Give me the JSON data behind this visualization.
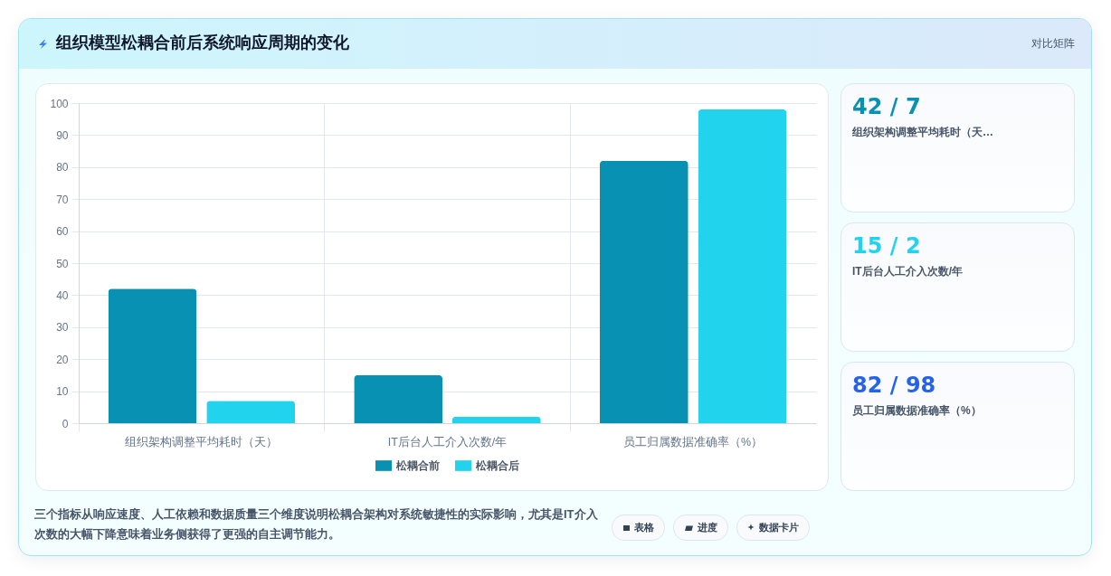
{
  "chart_data": [
    {
      "type": "bar",
      "title": "组织模型松耦合前后系统响应周期的变化",
      "categories": [
        "组织架构调整平均耗时（天）",
        "IT后台人工介入次数/年",
        "员工归属数据准确率（%）"
      ],
      "series": [
        {
          "name": "松耦合前",
          "color": "#0891b2",
          "values": [
            42,
            15,
            82
          ]
        },
        {
          "name": "松耦合后",
          "color": "#22d3ee",
          "values": [
            7,
            2,
            98
          ]
        }
      ],
      "ylim": [
        0,
        100
      ],
      "yticks": [
        0,
        10,
        20,
        30,
        40,
        50,
        60,
        70,
        80,
        90,
        100
      ],
      "grid": true,
      "legend": "bottom",
      "annotations": [
        "对比矩阵",
        "三个指标从响应速度、人工依赖和数据质量三个维度说明松耦合架构对系统敏捷性的实际影响，尤其是IT介入次数的大幅下降意味着业务侧获得了更强的自主调节能力。",
        "表格",
        "进度",
        "数据卡片"
      ]
    },
    {
      "type": "other",
      "title": "42 / 7",
      "subtitle": "组织架构调整平均耗时（天…",
      "color": "#0891b2"
    },
    {
      "type": "other",
      "title": "15 / 2",
      "subtitle": "IT后台人工介入次数/年",
      "color": "#22d3ee"
    },
    {
      "type": "other",
      "title": "82 / 98",
      "subtitle": "员工归属数据准确率（%）",
      "color": "#2563eb"
    }
  ]
}
